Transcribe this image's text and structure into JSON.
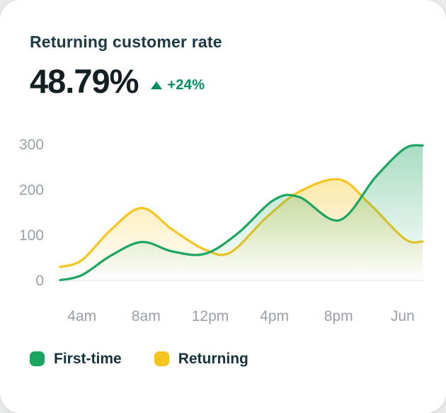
{
  "card": {
    "title": "Returning customer rate",
    "value": "48.79%",
    "delta": "+24%"
  },
  "colors": {
    "first_time_green": "#1ca461",
    "returning_yellow": "#f5c51d",
    "delta_green": "#008f5f",
    "axis_text": "#98a2a6",
    "title_text": "#1d3a44",
    "value_text": "#141f24",
    "baseline": "#e7ebea",
    "card_background": "#ffffff"
  },
  "chart_data": {
    "type": "area",
    "title": "Returning customer rate",
    "x": [
      "4am",
      "8am",
      "12pm",
      "4pm",
      "8pm",
      "Jun"
    ],
    "xlabel": "",
    "ylabel": "",
    "yticks": [
      0,
      100,
      200,
      300
    ],
    "ylim": [
      0,
      300
    ],
    "grid": false,
    "legend_position": "bottom",
    "series": [
      {
        "name": "First-time",
        "color": "#1ca461",
        "values": [
          12,
          85,
          59,
          178,
          133,
          291
        ],
        "curve": [
          [
            0.0,
            1
          ],
          [
            0.06,
            12
          ],
          [
            0.14,
            55
          ],
          [
            0.225,
            85
          ],
          [
            0.31,
            64
          ],
          [
            0.4,
            59
          ],
          [
            0.49,
            104
          ],
          [
            0.59,
            178
          ],
          [
            0.66,
            184
          ],
          [
            0.77,
            133
          ],
          [
            0.87,
            228
          ],
          [
            0.95,
            291
          ],
          [
            1.0,
            298
          ]
        ]
      },
      {
        "name": "Returning",
        "color": "#f5c51d",
        "values": [
          45,
          160,
          68,
          150,
          223,
          92
        ],
        "curve": [
          [
            0.0,
            30
          ],
          [
            0.06,
            45
          ],
          [
            0.14,
            112
          ],
          [
            0.225,
            160
          ],
          [
            0.31,
            112
          ],
          [
            0.4,
            68
          ],
          [
            0.47,
            62
          ],
          [
            0.57,
            140
          ],
          [
            0.66,
            196
          ],
          [
            0.77,
            223
          ],
          [
            0.85,
            172
          ],
          [
            0.95,
            92
          ],
          [
            1.0,
            86
          ]
        ]
      }
    ]
  }
}
